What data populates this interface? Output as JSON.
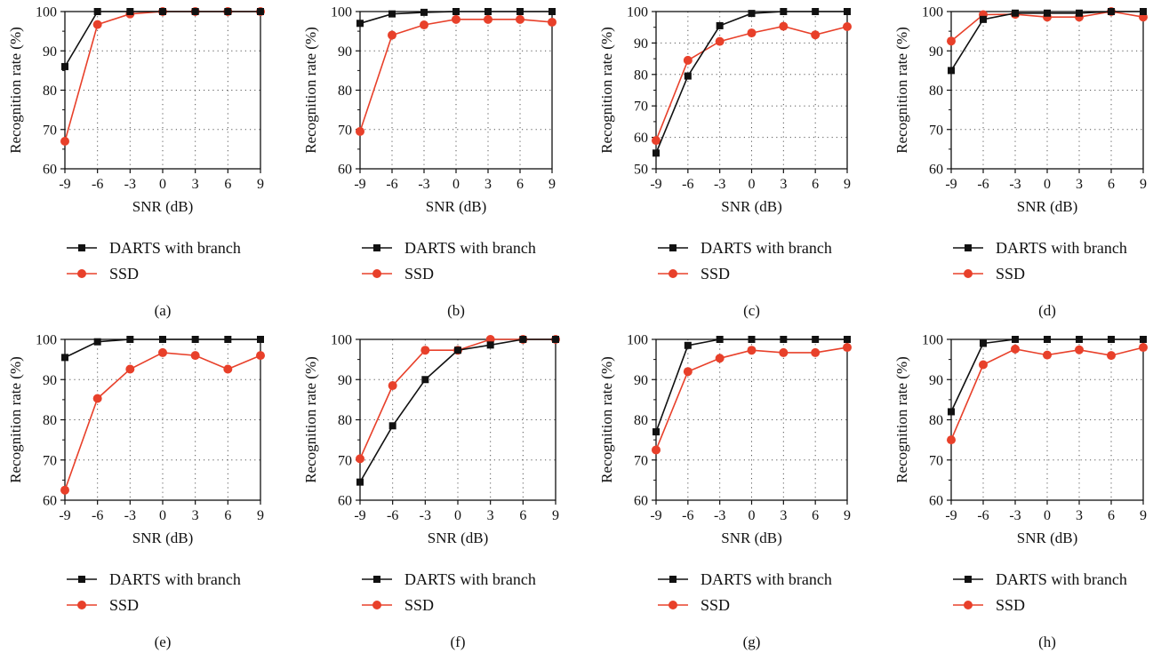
{
  "style": {
    "colors": {
      "darts": "#111111",
      "ssd": "#e8402a",
      "grid": "#555555"
    }
  },
  "chart_data": [
    {
      "type": "line",
      "panel_label": "(a)",
      "x": [
        -9,
        -6,
        -3,
        0,
        3,
        6,
        9
      ],
      "x_tick_labels": [
        "-9",
        "-6",
        "-3",
        "0",
        "3",
        "6",
        "9"
      ],
      "xlabel": "SNR (dB)",
      "ylabel": "Recognition rate (%)",
      "ylim": [
        60,
        100
      ],
      "yticks": [
        60,
        70,
        80,
        90,
        100
      ],
      "grid": true,
      "legend_position": "below",
      "series": [
        {
          "name": "DARTS with branch",
          "marker": "square",
          "values": [
            86,
            100,
            100,
            100,
            100,
            100,
            100
          ]
        },
        {
          "name": "SSD",
          "marker": "circle",
          "values": [
            67,
            96.7,
            99.4,
            100,
            100,
            100,
            100
          ]
        }
      ]
    },
    {
      "type": "line",
      "panel_label": "(b)",
      "x": [
        -9,
        -6,
        -3,
        0,
        3,
        6,
        9
      ],
      "x_tick_labels": [
        "-9",
        "-6",
        "-3",
        "0",
        "3",
        "6",
        "9"
      ],
      "xlabel": "SNR (dB)",
      "ylabel": "Recognition rate (%)",
      "ylim": [
        60,
        100
      ],
      "yticks": [
        60,
        70,
        80,
        90,
        100
      ],
      "grid": true,
      "legend_position": "below",
      "series": [
        {
          "name": "DARTS with branch",
          "marker": "square",
          "values": [
            97,
            99.4,
            99.8,
            100,
            100,
            100,
            100
          ]
        },
        {
          "name": "SSD",
          "marker": "circle",
          "values": [
            69.5,
            94,
            96.6,
            98,
            98,
            98,
            97.3
          ]
        }
      ]
    },
    {
      "type": "line",
      "panel_label": "(c)",
      "x": [
        -9,
        -6,
        -3,
        0,
        3,
        6,
        9
      ],
      "x_tick_labels": [
        "-9",
        "-6",
        "-3",
        "0",
        "3",
        "6",
        "9"
      ],
      "xlabel": "SNR (dB)",
      "ylabel": "Recognition rate (%)",
      "ylim": [
        50,
        100
      ],
      "yticks": [
        50,
        60,
        70,
        80,
        90,
        100
      ],
      "grid": true,
      "legend_position": "below",
      "series": [
        {
          "name": "DARTS with branch",
          "marker": "square",
          "values": [
            55,
            79.5,
            95.5,
            99.4,
            100,
            100,
            100
          ]
        },
        {
          "name": "SSD",
          "marker": "circle",
          "values": [
            59,
            84.5,
            90.5,
            93.2,
            95.3,
            92.6,
            95.2
          ]
        }
      ]
    },
    {
      "type": "line",
      "panel_label": "(d)",
      "x": [
        -9,
        -6,
        -3,
        0,
        3,
        6,
        9
      ],
      "x_tick_labels": [
        "-9",
        "-6",
        "-3",
        "0",
        "3",
        "6",
        "9"
      ],
      "xlabel": "SNR (dB)",
      "ylabel": "Recognition rate (%)",
      "ylim": [
        60,
        100
      ],
      "yticks": [
        60,
        70,
        80,
        90,
        100
      ],
      "grid": true,
      "legend_position": "below",
      "series": [
        {
          "name": "DARTS with branch",
          "marker": "square",
          "values": [
            85,
            98,
            99.6,
            99.6,
            99.6,
            100,
            100
          ]
        },
        {
          "name": "SSD",
          "marker": "circle",
          "values": [
            92.5,
            99.2,
            99.3,
            98.6,
            98.6,
            100,
            98.6
          ]
        }
      ]
    },
    {
      "type": "line",
      "panel_label": "(e)",
      "x": [
        -9,
        -6,
        -3,
        0,
        3,
        6,
        9
      ],
      "x_tick_labels": [
        "-9",
        "-6",
        "-3",
        "0",
        "3",
        "6",
        "9"
      ],
      "xlabel": "SNR (dB)",
      "ylabel": "Recognition rate (%)",
      "ylim": [
        60,
        100
      ],
      "yticks": [
        60,
        70,
        80,
        90,
        100
      ],
      "grid": true,
      "legend_position": "below",
      "series": [
        {
          "name": "DARTS with branch",
          "marker": "square",
          "values": [
            95.5,
            99.4,
            100,
            100,
            100,
            100,
            100
          ]
        },
        {
          "name": "SSD",
          "marker": "circle",
          "values": [
            62.5,
            85.3,
            92.6,
            96.7,
            96,
            92.6,
            96
          ]
        }
      ]
    },
    {
      "type": "line",
      "panel_label": "(f)",
      "x": [
        -9,
        -6,
        -3,
        0,
        3,
        6,
        9
      ],
      "x_tick_labels": [
        "-9",
        "-6",
        "-3",
        "0",
        "3",
        "6",
        "9"
      ],
      "xlabel": "SNR (dB)",
      "ylabel": "Recognition rate (%)",
      "ylim": [
        60,
        100
      ],
      "yticks": [
        60,
        70,
        80,
        90,
        100
      ],
      "grid": true,
      "legend_position": "below",
      "series": [
        {
          "name": "DARTS with branch",
          "marker": "square",
          "values": [
            64.5,
            78.5,
            90,
            97.3,
            98.6,
            100,
            100
          ]
        },
        {
          "name": "SSD",
          "marker": "circle",
          "values": [
            70.3,
            88.5,
            97.3,
            97.3,
            100,
            100,
            100
          ]
        }
      ]
    },
    {
      "type": "line",
      "panel_label": "(g)",
      "x": [
        -9,
        -6,
        -3,
        0,
        3,
        6,
        9
      ],
      "x_tick_labels": [
        "-9",
        "-6",
        "-3",
        "0",
        "3",
        "6",
        "9"
      ],
      "xlabel": "SNR (dB)",
      "ylabel": "Recognition rate (%)",
      "ylim": [
        60,
        100
      ],
      "yticks": [
        60,
        70,
        80,
        90,
        100
      ],
      "grid": true,
      "legend_position": "below",
      "series": [
        {
          "name": "DARTS with branch",
          "marker": "square",
          "values": [
            77,
            98.5,
            100,
            100,
            100,
            100,
            100
          ]
        },
        {
          "name": "SSD",
          "marker": "circle",
          "values": [
            72.5,
            92,
            95.3,
            97.3,
            96.7,
            96.7,
            98
          ]
        }
      ]
    },
    {
      "type": "line",
      "panel_label": "(h)",
      "x": [
        -9,
        -6,
        -3,
        0,
        3,
        6,
        9
      ],
      "x_tick_labels": [
        "-9",
        "-6",
        "-3",
        "0",
        "3",
        "6",
        "9"
      ],
      "xlabel": "SNR (dB)",
      "ylabel": "Recognition rate (%)",
      "ylim": [
        60,
        100
      ],
      "yticks": [
        60,
        70,
        80,
        90,
        100
      ],
      "grid": true,
      "legend_position": "below",
      "series": [
        {
          "name": "DARTS with branch",
          "marker": "square",
          "values": [
            82,
            99,
            100,
            100,
            100,
            100,
            100
          ]
        },
        {
          "name": "SSD",
          "marker": "circle",
          "values": [
            75,
            93.7,
            97.6,
            96.1,
            97.4,
            96,
            98
          ]
        }
      ]
    }
  ]
}
